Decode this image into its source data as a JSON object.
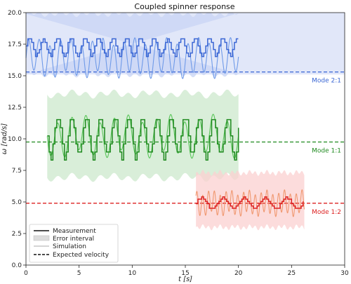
{
  "chart_data": {
    "type": "line",
    "title": "Coupled spinner response",
    "xlabel": "t [s]",
    "ylabel": "ω [rad/s]",
    "xlim": [
      0,
      30
    ],
    "ylim": [
      0,
      20
    ],
    "xticks": [
      "0",
      "5",
      "10",
      "15",
      "20",
      "25",
      "30"
    ],
    "yticks": [
      "0.0",
      "2.5",
      "5.0",
      "7.5",
      "10.0",
      "12.5",
      "15.0",
      "17.5",
      "20.0"
    ],
    "grid": false,
    "legend_position": "lower-left",
    "legend": [
      {
        "label": "Measurement",
        "style": "solid-dark"
      },
      {
        "label": "Error interval",
        "style": "patch"
      },
      {
        "label": "Simulation",
        "style": "solid-light"
      },
      {
        "label": "Expected velocity",
        "style": "dashed"
      }
    ],
    "modes": [
      {
        "label": "Mode 2:1",
        "color": "#3a66d4",
        "light_color": "#6f9ae8",
        "band_color": "#c8d4f4",
        "t_range": [
          0,
          20
        ],
        "expected": 15.3,
        "meas_mean": 17.3,
        "meas_amp": 0.7,
        "meas_period": 1.3,
        "sim_mean": 16.4,
        "sim_amp": 1.3,
        "sim_period": 1.0,
        "band_lower": 14.8,
        "band_upper": 20.0,
        "full_width_band": true
      },
      {
        "label": "Mode 1:1",
        "color": "#1f8a1f",
        "light_color": "#5ac65a",
        "band_color": "#cce8cc",
        "t_range": [
          2,
          20
        ],
        "expected": 9.75,
        "meas_mean": 10.2,
        "meas_amp": 1.6,
        "meas_period": 1.33,
        "sim_mean": 10.2,
        "sim_amp": 1.4,
        "sim_period": 1.33,
        "band_lower": 6.5,
        "band_upper": 14.0,
        "full_width_band": false
      },
      {
        "label": "Mode 1:2",
        "color": "#dd2222",
        "light_color": "#f09870",
        "band_color": "#fbd0d0",
        "t_range": [
          16,
          26.2
        ],
        "expected": 4.9,
        "meas_mean": 4.9,
        "meas_amp": 0.45,
        "meas_period": 2.0,
        "sim_mean": 4.9,
        "sim_amp": 0.85,
        "sim_period": 0.55,
        "band_lower": 2.7,
        "band_upper": 7.6,
        "full_width_band": false
      }
    ]
  }
}
